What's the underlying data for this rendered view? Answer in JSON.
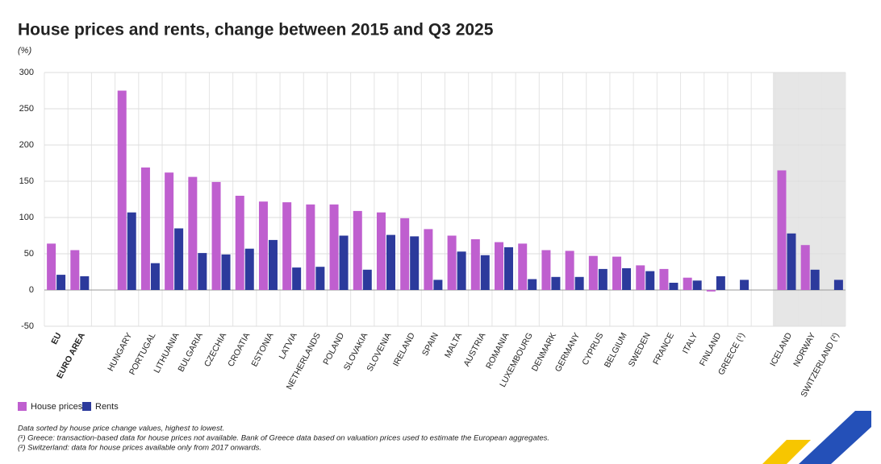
{
  "chart_data": {
    "type": "bar",
    "title": "House prices and rents, change between 2015 and Q3 2025",
    "y_label": "(%)",
    "categories": [
      "EU",
      "EURO AREA",
      null,
      "HUNGARY",
      "PORTUGAL",
      "LITHUANIA",
      "BULGARIA",
      "CZECHIA",
      "CROATIA",
      "ESTONIA",
      "LATVIA",
      "NETHERLANDS",
      "POLAND",
      "SLOVAKIA",
      "SLOVENIA",
      "IRELAND",
      "SPAIN",
      "MALTA",
      "AUSTRIA",
      "ROMANIA",
      "LUXEMBOURG",
      "DENMARK",
      "GERMANY",
      "CYPRUS",
      "BELGIUM",
      "SWEDEN",
      "FRANCE",
      "ITALY",
      "FINLAND",
      "GREECE (¹)",
      null,
      "ICELAND",
      "NORWAY",
      "SWITZERLAND (²)"
    ],
    "series": [
      {
        "name": "House prices",
        "color": "#bf5fcf",
        "values": [
          64,
          55,
          null,
          275,
          169,
          162,
          156,
          149,
          130,
          122,
          121,
          118,
          118,
          109,
          107,
          99,
          84,
          75,
          70,
          66,
          64,
          55,
          54,
          47,
          46,
          34,
          29,
          17,
          -2,
          null,
          null,
          165,
          62,
          null
        ]
      },
      {
        "name": "Rents",
        "color": "#2c3a9c",
        "values": [
          21,
          19,
          null,
          107,
          37,
          85,
          51,
          49,
          57,
          69,
          31,
          32,
          75,
          28,
          76,
          74,
          14,
          53,
          48,
          59,
          15,
          18,
          18,
          29,
          30,
          26,
          10,
          13,
          19,
          14,
          null,
          78,
          28,
          14
        ]
      }
    ],
    "ylim": [
      -50,
      300
    ],
    "yticks": [
      -50,
      0,
      50,
      100,
      150,
      200,
      250,
      300
    ],
    "grid": true,
    "notes": [
      "Data sorted by house price change values, highest to lowest.",
      "(¹) Greece: transaction-based data for house prices not available. Bank of Greece data based on valuation prices used to estimate the European aggregates.",
      "(²) Switzerland: data for house prices available only from 2017 onwards."
    ]
  }
}
